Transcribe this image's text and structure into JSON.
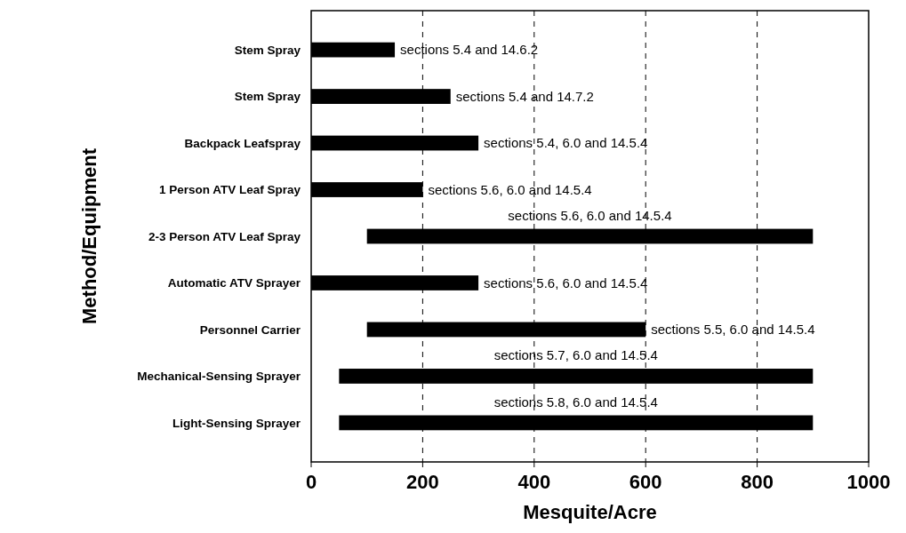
{
  "chart_data": {
    "type": "bar",
    "orientation": "horizontal",
    "xlabel": "Mesquite/Acre",
    "ylabel": "Method/Equipment",
    "categories": [
      "Stem Spray",
      "Stem Spray",
      "Backpack Leafspray",
      "1 Person ATV Leaf Spray",
      "2-3 Person ATV Leaf Spray",
      "Automatic ATV Sprayer",
      "Personnel Carrier",
      "Mechanical-Sensing Sprayer",
      "Light-Sensing Sprayer"
    ],
    "base": [
      0,
      0,
      0,
      0,
      100,
      0,
      100,
      50,
      50
    ],
    "values": [
      150,
      250,
      300,
      200,
      800,
      300,
      500,
      850,
      850
    ],
    "color": "#000000",
    "xlim": [
      0,
      1000
    ],
    "xticks": [
      0,
      200,
      400,
      600,
      800,
      1000
    ],
    "grid": "x",
    "annotations": [
      "sections 5.4 and 14.6.2",
      "sections 5.4 and 14.7.2",
      "sections 5.4, 6.0 and 14.5.4",
      "sections 5.6, 6.0 and 14.5.4",
      "sections 5.6, 6.0 and 14.5.4",
      "sections 5.6, 6.0 and 14.5.4",
      "sections 5.5, 6.0 and 14.5.4",
      "sections 5.7, 6.0 and 14.5.4",
      "sections 5.8, 6.0 and 14.5.4"
    ]
  }
}
